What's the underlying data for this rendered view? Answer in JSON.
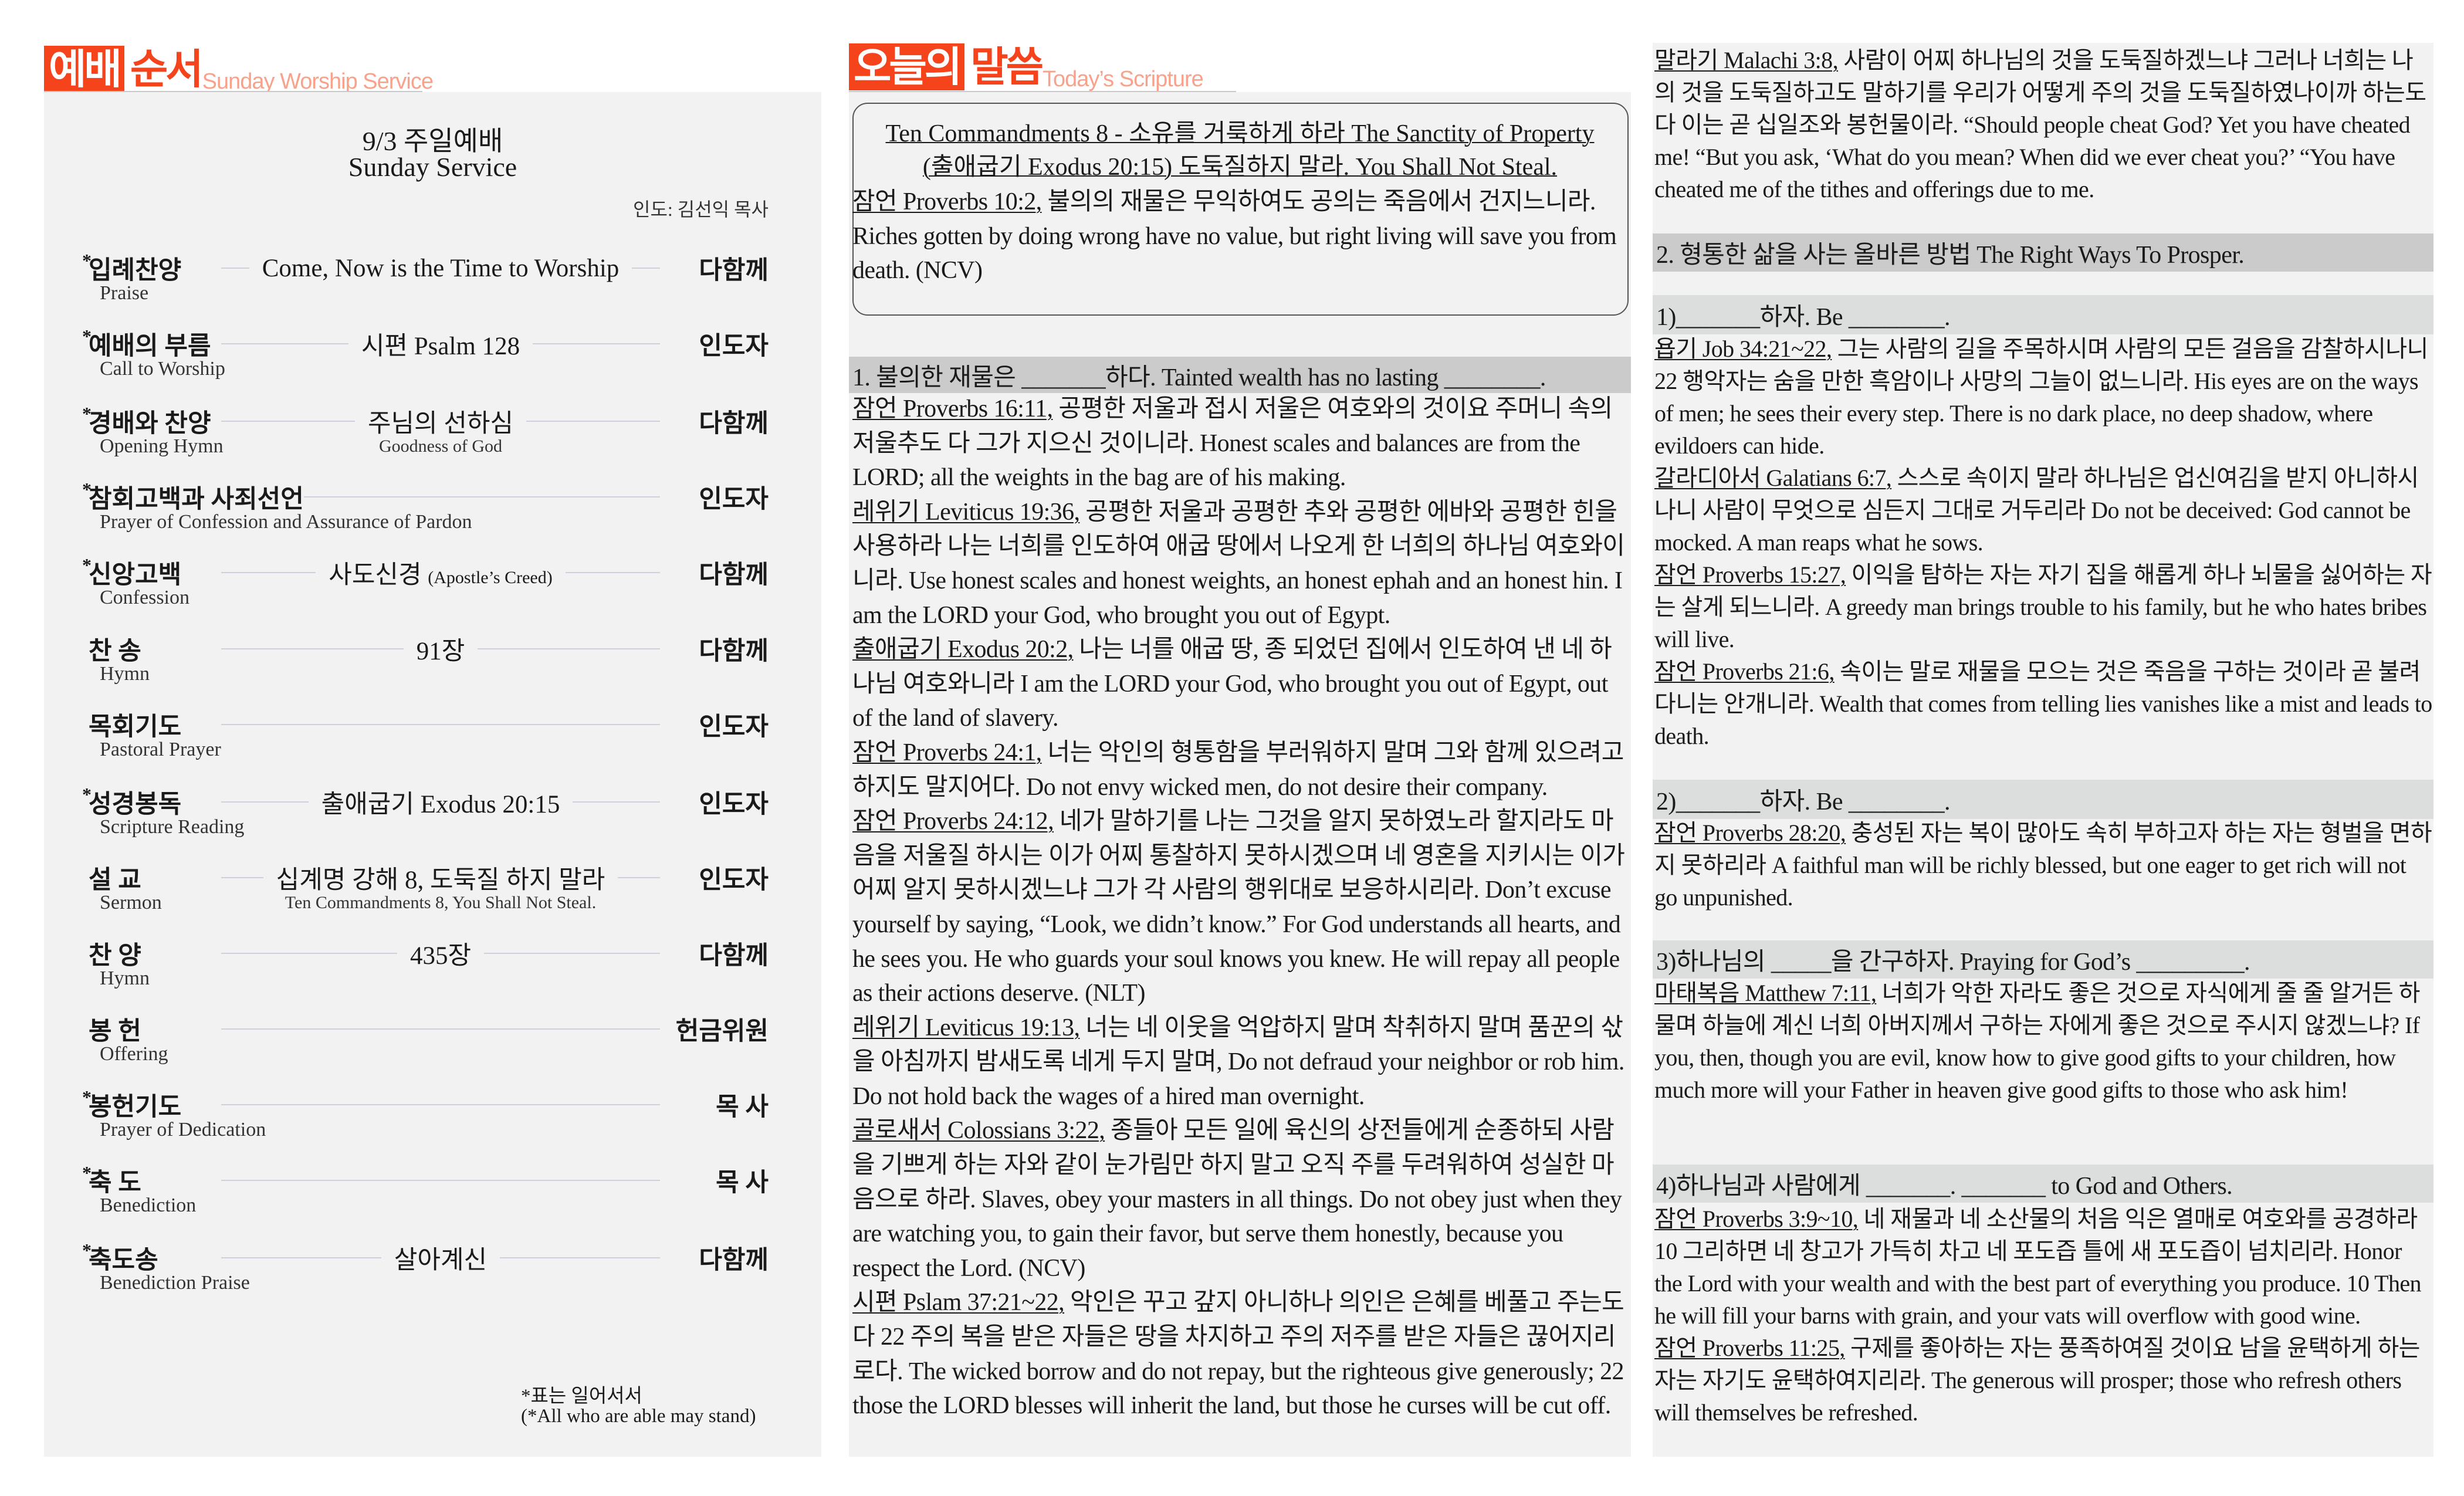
{
  "colors": {
    "accent": "#f5431b",
    "accent_light": "#f8a28c",
    "panel": "#f2f2f2",
    "section_bar": "#cbcbcb",
    "sub_bar": "#dcdddd"
  },
  "order": {
    "header": {
      "boxed": "예배",
      "red": "순서",
      "sub": "Sunday Worship Service"
    },
    "title_ko": "9/3 주일예배",
    "title_en": "Sunday Service",
    "leader": "인도: 김선익 목사",
    "rows": [
      {
        "star": "*",
        "ko": "입례찬양",
        "en": "Praise",
        "center": "Come, Now is the Time to Worship",
        "center_en": "",
        "role": "다함께"
      },
      {
        "star": "*",
        "ko": "예배의 부름",
        "en": "Call to Worship",
        "center": "시편 Psalm 128",
        "center_en": "",
        "role": "인도자"
      },
      {
        "star": "*",
        "ko": "경배와 찬양",
        "en": "Opening Hymn",
        "center": "주님의 선하심",
        "center_en": "Goodness of God",
        "role": "다함께"
      },
      {
        "star": "*",
        "ko": "참회고백과 사죄선언",
        "en": "Prayer of Confession and Assurance of Pardon",
        "center": "",
        "center_en": "",
        "role": "인도자"
      },
      {
        "star": "*",
        "ko": "신앙고백",
        "en": "Confession",
        "center": "사도신경",
        "center_small": "(Apostle’s Creed)",
        "center_en": "",
        "role": "다함께"
      },
      {
        "star": "",
        "ko": "찬 송",
        "en": "Hymn",
        "center": "91장",
        "center_en": "",
        "role": "다함께"
      },
      {
        "star": "",
        "ko": "목회기도",
        "en": "Pastoral Prayer",
        "center": "",
        "center_en": "",
        "role": "인도자"
      },
      {
        "star": "*",
        "ko": "성경봉독",
        "en": "Scripture Reading",
        "center": "출애굽기 Exodus 20:15",
        "center_en": "",
        "role": "인도자"
      },
      {
        "star": "",
        "ko": "설 교",
        "en": "Sermon",
        "center": "십계명 강해 8, 도둑질 하지 말라",
        "center_en": "Ten Commandments 8, You Shall Not Steal.",
        "role": "인도자"
      },
      {
        "star": "",
        "ko": "찬 양",
        "en": "Hymn",
        "center": "435장",
        "center_en": "",
        "role": "다함께"
      },
      {
        "star": "",
        "ko": "봉 헌",
        "en": "Offering",
        "center": "",
        "center_en": "",
        "role": "헌금위원"
      },
      {
        "star": "*",
        "ko": "봉헌기도",
        "en": "Prayer of Dedication",
        "center": "",
        "center_en": "",
        "role": "목 사"
      },
      {
        "star": "*",
        "ko": "축 도",
        "en": "Benediction",
        "center": "",
        "center_en": "",
        "role": "목 사"
      },
      {
        "star": "*",
        "ko": "축도송",
        "en": "Benediction Praise",
        "center": "살아계신",
        "center_en": "",
        "role": "다함께"
      }
    ],
    "footnote_ko": "*표는 일어서서",
    "footnote_en": "(*All who are able may stand)"
  },
  "scripture": {
    "header": {
      "boxed": "오늘의",
      "red": "말씀",
      "sub": "Today’s Scripture"
    },
    "title_line1": "Ten Commandments 8 - 소유를 거룩하게 하라 The Sanctity of Property",
    "title_line2": "(출애굽기 Exodus 20:15) 도둑질하지 말라. You Shall Not Steal.",
    "key_verse": {
      "ref": "잠언 Proverbs 10:2,",
      "text": " 불의의 재물은 무익하여도 공의는 죽음에서 건지느니라. Riches gotten by doing wrong have no value, but right living will save you from death. (NCV)"
    },
    "section1": {
      "heading": "1. 불의한 재물은 _______하다. Tainted wealth has no lasting ________.",
      "verses": [
        {
          "ref": "잠언 Proverbs 16:11,",
          "text": " 공평한 저울과 접시 저울은 여호와의 것이요 주머니 속의 저울추도 다 그가 지으신 것이니라. Honest scales and balances are from the LORD; all the weights in the bag are of his making."
        },
        {
          "ref": "레위기 Leviticus 19:36,",
          "text": " 공평한 저울과 공평한 추와 공평한 에바와 공평한 힌을 사용하라 나는 너희를 인도하여 애굽 땅에서 나오게 한 너희의 하나님 여호와이니라. Use honest scales and honest weights, an honest ephah and an honest hin. I am the LORD your God, who brought you out of Egypt."
        },
        {
          "ref": "출애굽기 Exodus 20:2,",
          "text": " 나는 너를 애굽 땅, 종 되었던 집에서 인도하여 낸 네 하나님 여호와니라 I am the LORD your God, who brought you out of Egypt, out of the land of slavery."
        },
        {
          "ref": "잠언 Proverbs 24:1,",
          "text": " 너는 악인의 형통함을 부러워하지 말며 그와 함께 있으려고 하지도 말지어다. Do not envy wicked men, do not desire their company."
        },
        {
          "ref": "잠언 Proverbs 24:12,",
          "text": " 네가 말하기를 나는 그것을 알지 못하였노라 할지라도 마음을 저울질 하시는 이가 어찌 통찰하지 못하시겠으며 네 영혼을 지키시는 이가 어찌 알지 못하시겠느냐 그가 각 사람의 행위대로 보응하시리라.  Don’t excuse yourself by saying, “Look, we didn’t know.” For God understands all hearts, and he sees you. He who guards your soul knows you knew. He will repay all people as their actions deserve. (NLT)"
        },
        {
          "ref": "레위기 Leviticus 19:13,",
          "text": " 너는 네 이웃을 억압하지 말며 착취하지 말며 품꾼의 삯을 아침까지 밤새도록 네게 두지 말며, Do not defraud your neighbor or rob him. Do not hold back the wages of a hired man overnight."
        },
        {
          "ref": "골로새서 Colossians 3:22,",
          "text": " 종들아 모든 일에 육신의 상전들에게 순종하되 사람을 기쁘게 하는 자와 같이 눈가림만 하지 말고 오직 주를 두려워하여 성실한 마음으로 하라. Slaves, obey your masters in all things. Do not obey just when they are watching you, to gain their favor, but serve them honestly, because you respect the Lord. (NCV)"
        },
        {
          "ref": "시편 Pslam 37:21~22,",
          "text": " 악인은 꾸고 갚지 아니하나 의인은 은혜를 베풀고 주는도다 22 주의 복을 받은 자들은 땅을 차지하고 주의 저주를 받은 자들은 끊어지리로다. The wicked borrow and do not repay, but the righteous give generously; 22 those the LORD blesses will inherit the land, but those he curses will be cut off."
        }
      ]
    },
    "malachi": [
      {
        "ref": "말라기 Malachi 3:8,",
        "text": " 사람이 어찌 하나님의 것을 도둑질하겠느냐 그러나 너희는 나의 것을 도둑질하고도 말하기를 우리가 어떻게 주의 것을 도둑질하였나이까 하는도다 이는 곧 십일조와 봉헌물이라. “Should people cheat God? Yet you have cheated me! “But you ask, ‘What do you mean? When did we ever cheat you?’ “You have cheated me of the tithes and offerings due to me."
      }
    ],
    "section2": {
      "heading": "2. 형통한 삶을 사는 올바른 방법 The Right Ways To Prosper.",
      "points": [
        {
          "heading": "1)_______하자. Be ________.",
          "verses": [
            {
              "ref": "욥기 Job 34:21~22,",
              "text": " 그는 사람의 길을 주목하시며 사람의 모든 걸음을 감찰하시나니 22 행악자는 숨을 만한 흑암이나 사망의 그늘이 없느니라. His eyes are on the ways of men; he sees their every step. There is no dark place, no deep shadow, where evildoers can hide."
            },
            {
              "ref": "갈라디아서 Galatians 6:7,",
              "text": " 스스로 속이지 말라 하나님은 업신여김을 받지 아니하시나니 사람이 무엇으로 심든지 그대로 거두리라 Do not be deceived: God cannot be mocked. A man reaps what he sows."
            },
            {
              "ref": "잠언 Proverbs 15:27,",
              "text": " 이익을 탐하는 자는 자기 집을 해롭게 하나 뇌물을 싫어하는 자는 살게 되느니라. A greedy man brings trouble to his family, but he who hates bribes will live."
            },
            {
              "ref": "잠언 Proverbs 21:6,",
              "text": " 속이는 말로 재물을 모으는 것은 죽음을 구하는 것이라 곧 불려다니는 안개니라. Wealth that comes from telling lies vanishes like a mist and leads to death."
            }
          ]
        },
        {
          "heading": "2)_______하자. Be ________.",
          "verses": [
            {
              "ref": "잠언 Proverbs 28:20,",
              "text": " 충성된 자는 복이 많아도 속히 부하고자 하는 자는 형벌을 면하지 못하리라 A faithful man will be richly blessed, but one eager to get rich will not go unpunished."
            }
          ]
        },
        {
          "heading": "3)하나님의 _____을 간구하자. Praying for God’s _________.",
          "verses": [
            {
              "ref": "마태복음 Matthew 7:11,",
              "text": " 너희가 악한 자라도 좋은 것으로 자식에게 줄 줄 알거든 하물며 하늘에 계신 너희 아버지께서 구하는 자에게 좋은 것으로 주시지 않겠느냐? If you, then, though you are evil, know how to give good gifts to your children, how much more will your Father in heaven give good gifts to those who ask him!"
            }
          ]
        },
        {
          "heading": "4)하나님과 사람에게 _______. _______ to God and Others.",
          "verses": [
            {
              "ref": "잠언 Proverbs 3:9~10,",
              "text": " 네 재물과 네 소산물의 처음 익은 열매로 여호와를 공경하라 10 그리하면 네 창고가 가득히 차고 네 포도즙 틀에 새 포도즙이 넘치리라. Honor the Lord with your wealth and with the best part of everything you produce. 10 Then he will fill your barns with grain, and your vats will overflow with good wine."
            },
            {
              "ref": "잠언 Proverbs 11:25,",
              "text": " 구제를 좋아하는 자는 풍족하여질 것이요 남을 윤택하게 하는 자는 자기도 윤택하여지리라. The generous will prosper; those who refresh others will themselves be refreshed."
            }
          ]
        }
      ]
    }
  }
}
